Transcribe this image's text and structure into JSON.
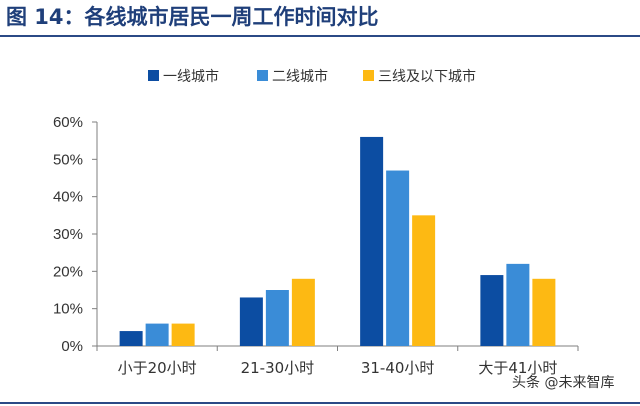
{
  "header": {
    "title": "图 14：各线城市居民一周工作时间对比"
  },
  "watermark": "头条 @未来智库",
  "chart_data": {
    "type": "bar",
    "categories": [
      "小于20小时",
      "21-30小时",
      "31-40小时",
      "大于41小时"
    ],
    "series": [
      {
        "name": "一线城市",
        "color": "#0c4da2",
        "values": [
          4,
          13,
          56,
          19
        ]
      },
      {
        "name": "二线城市",
        "color": "#3a8cd7",
        "values": [
          6,
          15,
          47,
          22
        ]
      },
      {
        "name": "三线及以下城市",
        "color": "#fdb913",
        "values": [
          6,
          18,
          35,
          18
        ]
      }
    ],
    "ylim": [
      0,
      60
    ],
    "yticks": [
      0,
      10,
      20,
      30,
      40,
      50,
      60
    ],
    "ytick_labels": [
      "0%",
      "10%",
      "20%",
      "30%",
      "40%",
      "50%",
      "60%"
    ],
    "xlabel": "",
    "ylabel": "",
    "grid": false,
    "legend_position": "top"
  }
}
